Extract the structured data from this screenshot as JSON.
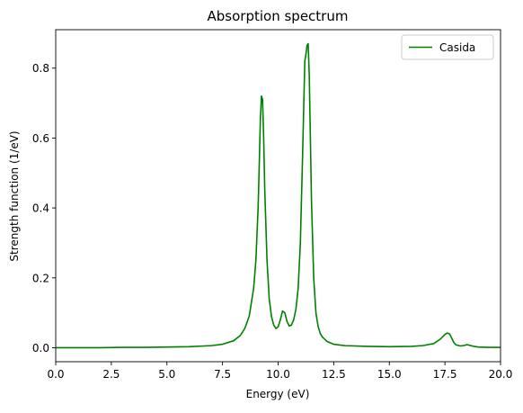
{
  "chart_data": {
    "type": "line",
    "title": "Absorption spectrum",
    "xlabel": "Energy (eV)",
    "ylabel": "Strength function (1/eV)",
    "xlim": [
      0,
      20
    ],
    "ylim": [
      -0.04,
      0.91
    ],
    "xticks": [
      "0.0",
      "2.5",
      "5.0",
      "7.5",
      "10.0",
      "12.5",
      "15.0",
      "17.5",
      "20.0"
    ],
    "yticks": [
      "0.0",
      "0.2",
      "0.4",
      "0.6",
      "0.8"
    ],
    "grid": false,
    "legend_position": "top-right",
    "series": [
      {
        "name": "Casida",
        "color": "#008000",
        "x": [
          0.0,
          1.0,
          2.0,
          3.0,
          4.0,
          5.0,
          6.0,
          7.0,
          7.5,
          8.0,
          8.3,
          8.5,
          8.7,
          8.9,
          9.0,
          9.1,
          9.15,
          9.2,
          9.25,
          9.3,
          9.35,
          9.4,
          9.5,
          9.6,
          9.7,
          9.8,
          9.9,
          10.0,
          10.1,
          10.2,
          10.3,
          10.4,
          10.5,
          10.6,
          10.7,
          10.8,
          10.9,
          11.0,
          11.1,
          11.2,
          11.25,
          11.3,
          11.35,
          11.4,
          11.45,
          11.5,
          11.6,
          11.7,
          11.8,
          11.9,
          12.0,
          12.2,
          12.5,
          13.0,
          14.0,
          15.0,
          16.0,
          16.5,
          17.0,
          17.3,
          17.5,
          17.6,
          17.7,
          17.75,
          17.8,
          17.9,
          18.0,
          18.2,
          18.4,
          18.5,
          18.6,
          18.8,
          19.0,
          19.5,
          20.0
        ],
        "values": [
          0.0,
          0.0,
          0.0,
          0.001,
          0.001,
          0.002,
          0.003,
          0.006,
          0.01,
          0.02,
          0.035,
          0.055,
          0.09,
          0.17,
          0.25,
          0.4,
          0.52,
          0.65,
          0.72,
          0.71,
          0.6,
          0.45,
          0.25,
          0.14,
          0.09,
          0.065,
          0.055,
          0.06,
          0.08,
          0.105,
          0.1,
          0.075,
          0.062,
          0.065,
          0.08,
          0.11,
          0.17,
          0.3,
          0.55,
          0.82,
          0.84,
          0.865,
          0.87,
          0.78,
          0.6,
          0.42,
          0.2,
          0.1,
          0.06,
          0.04,
          0.03,
          0.018,
          0.01,
          0.006,
          0.004,
          0.003,
          0.004,
          0.006,
          0.012,
          0.025,
          0.038,
          0.042,
          0.04,
          0.035,
          0.028,
          0.015,
          0.008,
          0.005,
          0.007,
          0.009,
          0.007,
          0.004,
          0.002,
          0.001,
          0.001
        ]
      }
    ]
  }
}
